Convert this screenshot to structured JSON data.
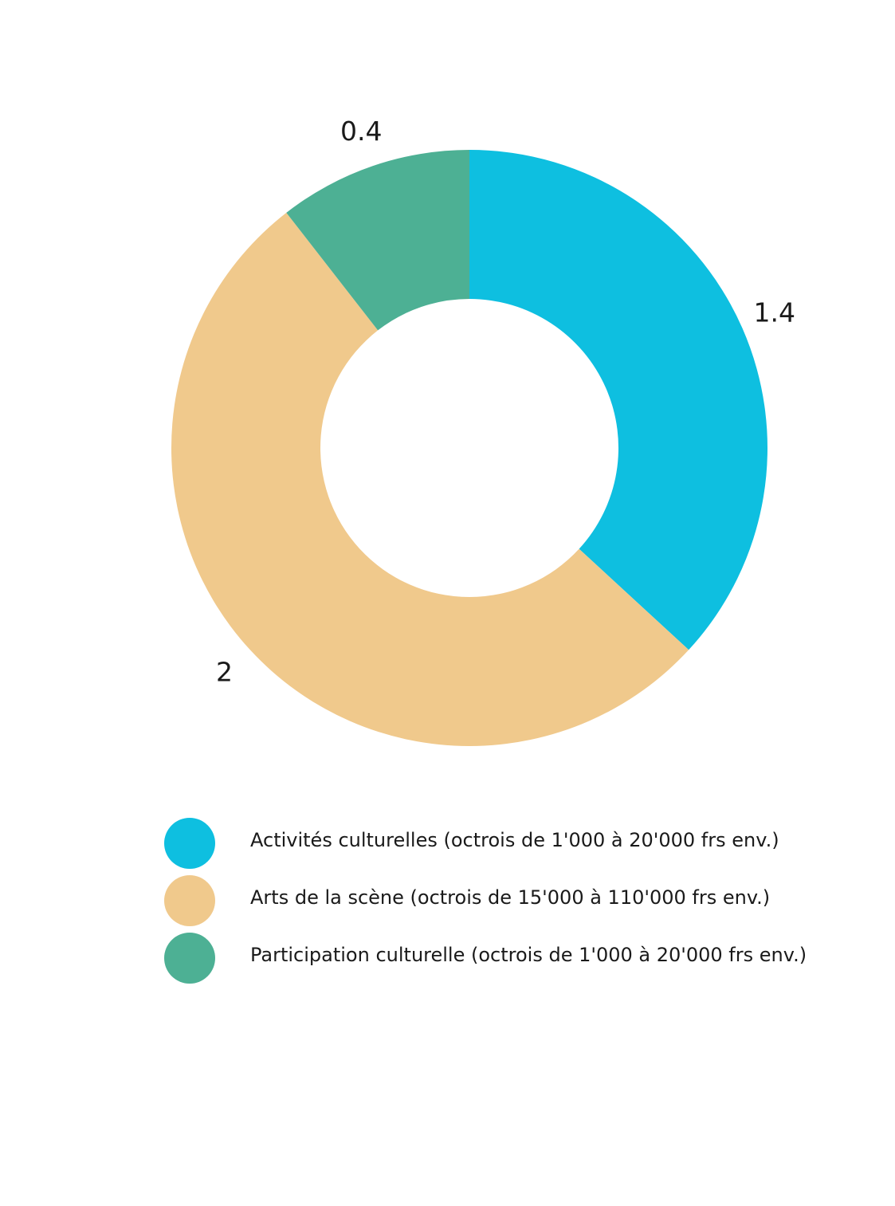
{
  "chart_data": {
    "type": "pie",
    "title": "",
    "donut": true,
    "start_angle_deg": 0,
    "direction": "clockwise",
    "legend_position": "bottom",
    "slices": [
      {
        "name": "Activités culturelles (octrois de 1'000 à 20'000 frs env.)",
        "value": 1.4,
        "label": "1.4",
        "color": "#0EBFE0"
      },
      {
        "name": "Arts de la scène (octrois de 15'000 à 110'000 frs env.)",
        "value": 2,
        "label": "2",
        "color": "#F0C98C"
      },
      {
        "name": "Participation culturelle (octrois de 1'000 à 20'000 frs env.)",
        "value": 0.4,
        "label": "0.4",
        "color": "#4DB094"
      }
    ]
  }
}
